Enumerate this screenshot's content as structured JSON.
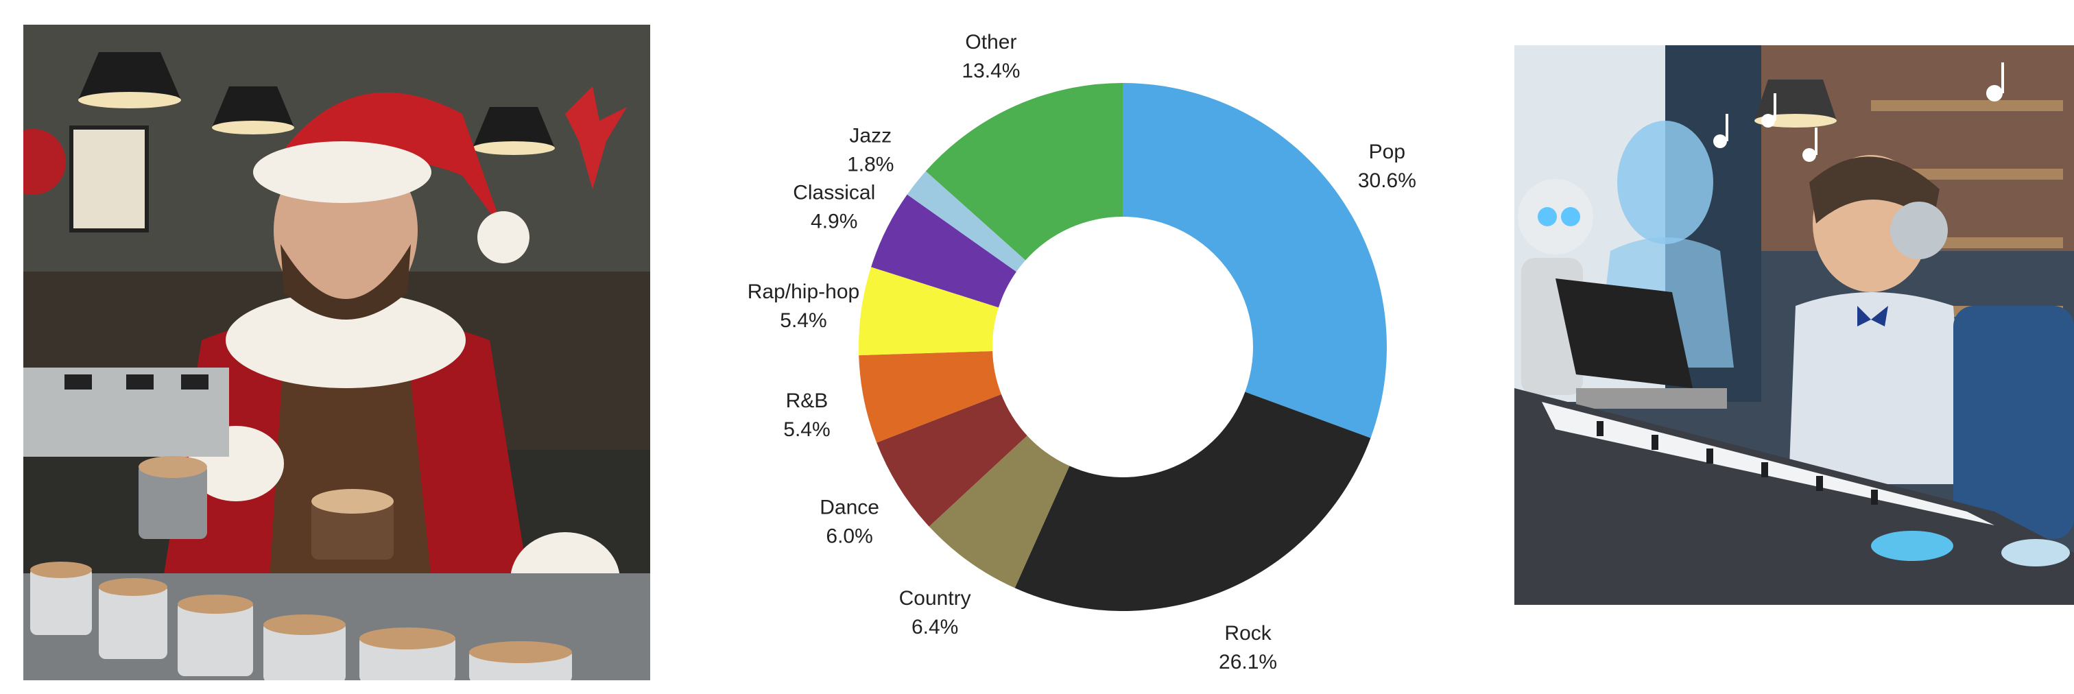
{
  "chart_data": {
    "type": "pie",
    "donut": true,
    "slices": [
      {
        "label": "Pop",
        "value": 30.6,
        "display": "30.6%",
        "color": "#4ea8e6"
      },
      {
        "label": "Rock",
        "value": 26.1,
        "display": "26.1%",
        "color": "#262626"
      },
      {
        "label": "Country",
        "value": 6.4,
        "display": "6.4%",
        "color": "#8f8554"
      },
      {
        "label": "Dance",
        "value": 6.0,
        "display": "6.0%",
        "color": "#8b3330"
      },
      {
        "label": "R&B",
        "value": 5.4,
        "display": "5.4%",
        "color": "#df6a24"
      },
      {
        "label": "Rap/hip-hop",
        "value": 5.4,
        "display": "5.4%",
        "color": "#f8f63a"
      },
      {
        "label": "Classical",
        "value": 4.9,
        "display": "4.9%",
        "color": "#6a35a6"
      },
      {
        "label": "Jazz",
        "value": 1.8,
        "display": "1.8%",
        "color": "#9ecae1"
      },
      {
        "label": "Other",
        "value": 13.4,
        "display": "13.4%",
        "color": "#4caf50"
      }
    ]
  },
  "images": {
    "left": "Bearded barista in a Santa Claus costume holding coffee cups behind an espresso machine in a busy café",
    "right": "Young boy wearing headphones and a bow tie playing a keyboard beside a holographic AI figure and a robot"
  }
}
